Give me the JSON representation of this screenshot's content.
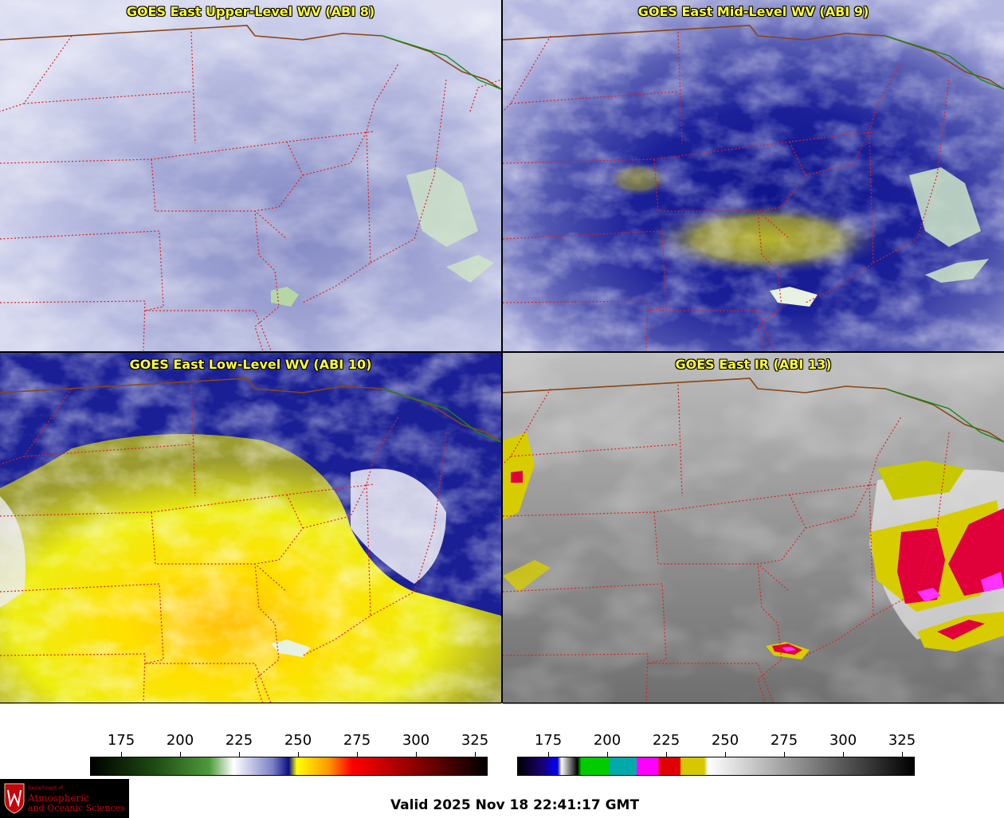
{
  "panels": [
    {
      "title": "GOES East Upper-Level WV (ABI 8)"
    },
    {
      "title": "GOES East Mid-Level WV (ABI 9)"
    },
    {
      "title": "GOES East Low-Level WV (ABI 10)"
    },
    {
      "title": "GOES East IR (ABI 13)"
    }
  ],
  "colorbars": {
    "wv": {
      "ticks": [
        "175",
        "200",
        "225",
        "250",
        "275",
        "300",
        "325"
      ]
    },
    "ir": {
      "ticks": [
        "175",
        "200",
        "225",
        "250",
        "275",
        "300",
        "325"
      ]
    }
  },
  "logo": {
    "dept": "Department of",
    "line1": "Atmospheric",
    "line2": "and Oceanic Sciences"
  },
  "valid_time": "Valid 2025 Nov 18 22:41:17 GMT",
  "colors": {
    "state_border": "#e02020",
    "country_border": "#8b4513",
    "canada_line": "#138a13",
    "title": "#ffff33"
  }
}
